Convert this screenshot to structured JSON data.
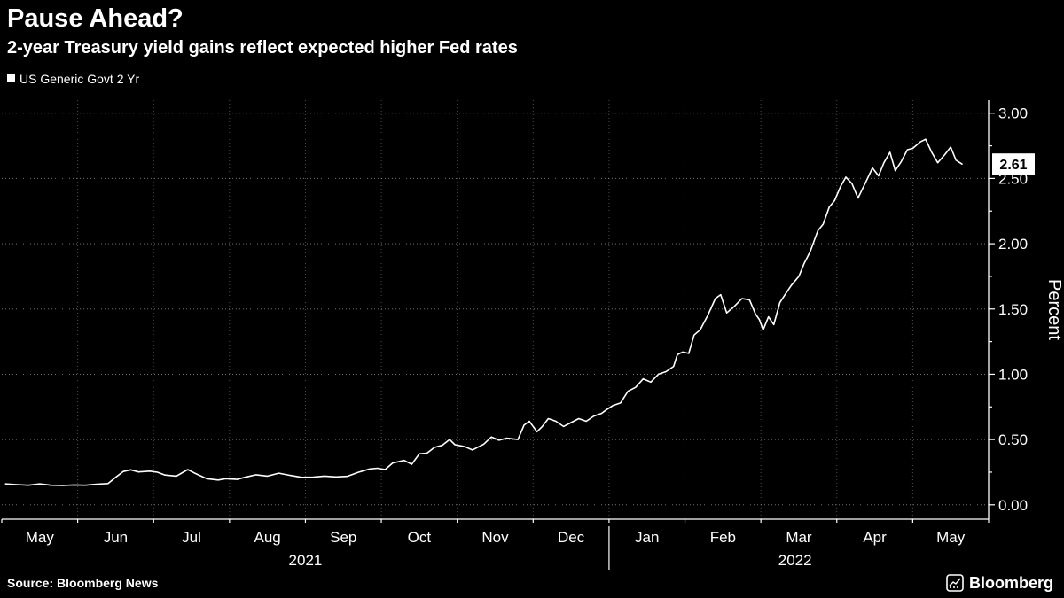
{
  "chart_data": {
    "type": "line",
    "title": "Pause Ahead?",
    "subtitle": "2-year Treasury yield gains reflect expected higher Fed rates",
    "ylabel": "Percent",
    "grid": "dotted",
    "legend_position": "top-left",
    "background_color": "#000000",
    "line_color": "#ffffff",
    "xlim": [
      0,
      13
    ],
    "ylim": [
      -0.11,
      3.1
    ],
    "yticks": [
      0,
      0.5,
      1,
      1.5,
      2,
      2.5,
      3
    ],
    "ytick_labels": [
      "0.00",
      "0.50",
      "1.00",
      "1.50",
      "2.00",
      "2.50",
      "3.00"
    ],
    "x_ticks": [
      {
        "label": "May",
        "x": 0.5
      },
      {
        "label": "Jun",
        "x": 1.5
      },
      {
        "label": "Jul",
        "x": 2.5
      },
      {
        "label": "Aug",
        "x": 3.5
      },
      {
        "label": "Sep",
        "x": 4.5
      },
      {
        "label": "Oct",
        "x": 5.5
      },
      {
        "label": "Nov",
        "x": 6.5
      },
      {
        "label": "Dec",
        "x": 7.5
      },
      {
        "label": "Jan",
        "x": 8.5
      },
      {
        "label": "Feb",
        "x": 9.5
      },
      {
        "label": "Mar",
        "x": 10.5
      },
      {
        "label": "Apr",
        "x": 11.5
      },
      {
        "label": "May",
        "x": 12.5
      }
    ],
    "year_labels": [
      {
        "label": "2021",
        "x": 4.0
      },
      {
        "label": "2022",
        "x": 10.45
      }
    ],
    "year_divider_x": 8,
    "last_value_label": "2.61",
    "series": [
      {
        "name": "US Generic Govt 2 Yr",
        "color": "#ffffff",
        "points": [
          [
            0.05,
            0.16
          ],
          [
            0.2,
            0.155
          ],
          [
            0.35,
            0.15
          ],
          [
            0.5,
            0.16
          ],
          [
            0.65,
            0.15
          ],
          [
            0.8,
            0.148
          ],
          [
            0.95,
            0.152
          ],
          [
            1.1,
            0.15
          ],
          [
            1.25,
            0.158
          ],
          [
            1.4,
            0.163
          ],
          [
            1.5,
            0.21
          ],
          [
            1.6,
            0.255
          ],
          [
            1.7,
            0.268
          ],
          [
            1.8,
            0.252
          ],
          [
            1.95,
            0.258
          ],
          [
            2.05,
            0.25
          ],
          [
            2.15,
            0.228
          ],
          [
            2.3,
            0.22
          ],
          [
            2.45,
            0.27
          ],
          [
            2.55,
            0.24
          ],
          [
            2.7,
            0.2
          ],
          [
            2.85,
            0.19
          ],
          [
            2.95,
            0.2
          ],
          [
            3.1,
            0.195
          ],
          [
            3.2,
            0.21
          ],
          [
            3.35,
            0.23
          ],
          [
            3.5,
            0.22
          ],
          [
            3.65,
            0.242
          ],
          [
            3.8,
            0.225
          ],
          [
            3.95,
            0.21
          ],
          [
            4.1,
            0.212
          ],
          [
            4.25,
            0.22
          ],
          [
            4.4,
            0.214
          ],
          [
            4.55,
            0.218
          ],
          [
            4.7,
            0.25
          ],
          [
            4.85,
            0.275
          ],
          [
            4.95,
            0.28
          ],
          [
            5.05,
            0.27
          ],
          [
            5.15,
            0.32
          ],
          [
            5.3,
            0.34
          ],
          [
            5.4,
            0.31
          ],
          [
            5.5,
            0.39
          ],
          [
            5.6,
            0.395
          ],
          [
            5.7,
            0.44
          ],
          [
            5.8,
            0.455
          ],
          [
            5.9,
            0.5
          ],
          [
            5.97,
            0.46
          ],
          [
            6.1,
            0.445
          ],
          [
            6.2,
            0.42
          ],
          [
            6.35,
            0.465
          ],
          [
            6.45,
            0.52
          ],
          [
            6.55,
            0.495
          ],
          [
            6.65,
            0.51
          ],
          [
            6.8,
            0.5
          ],
          [
            6.88,
            0.61
          ],
          [
            6.95,
            0.64
          ],
          [
            7.05,
            0.56
          ],
          [
            7.12,
            0.6
          ],
          [
            7.2,
            0.66
          ],
          [
            7.3,
            0.64
          ],
          [
            7.4,
            0.6
          ],
          [
            7.5,
            0.63
          ],
          [
            7.6,
            0.66
          ],
          [
            7.7,
            0.64
          ],
          [
            7.8,
            0.68
          ],
          [
            7.9,
            0.7
          ],
          [
            7.97,
            0.73
          ],
          [
            8.05,
            0.76
          ],
          [
            8.15,
            0.78
          ],
          [
            8.25,
            0.87
          ],
          [
            8.35,
            0.9
          ],
          [
            8.45,
            0.965
          ],
          [
            8.55,
            0.94
          ],
          [
            8.65,
            1.0
          ],
          [
            8.75,
            1.02
          ],
          [
            8.85,
            1.06
          ],
          [
            8.9,
            1.15
          ],
          [
            8.97,
            1.17
          ],
          [
            9.05,
            1.16
          ],
          [
            9.12,
            1.3
          ],
          [
            9.2,
            1.34
          ],
          [
            9.3,
            1.45
          ],
          [
            9.4,
            1.58
          ],
          [
            9.47,
            1.61
          ],
          [
            9.55,
            1.47
          ],
          [
            9.65,
            1.52
          ],
          [
            9.75,
            1.58
          ],
          [
            9.85,
            1.57
          ],
          [
            9.93,
            1.46
          ],
          [
            9.98,
            1.42
          ],
          [
            10.03,
            1.34
          ],
          [
            10.1,
            1.44
          ],
          [
            10.17,
            1.38
          ],
          [
            10.25,
            1.55
          ],
          [
            10.33,
            1.62
          ],
          [
            10.4,
            1.68
          ],
          [
            10.5,
            1.75
          ],
          [
            10.57,
            1.85
          ],
          [
            10.65,
            1.94
          ],
          [
            10.75,
            2.1
          ],
          [
            10.82,
            2.15
          ],
          [
            10.9,
            2.28
          ],
          [
            10.97,
            2.33
          ],
          [
            11.05,
            2.44
          ],
          [
            11.12,
            2.51
          ],
          [
            11.2,
            2.46
          ],
          [
            11.28,
            2.35
          ],
          [
            11.38,
            2.47
          ],
          [
            11.47,
            2.58
          ],
          [
            11.55,
            2.52
          ],
          [
            11.62,
            2.62
          ],
          [
            11.7,
            2.7
          ],
          [
            11.77,
            2.56
          ],
          [
            11.85,
            2.63
          ],
          [
            11.93,
            2.72
          ],
          [
            12.0,
            2.73
          ],
          [
            12.1,
            2.78
          ],
          [
            12.17,
            2.8
          ],
          [
            12.25,
            2.7
          ],
          [
            12.33,
            2.62
          ],
          [
            12.42,
            2.68
          ],
          [
            12.5,
            2.74
          ],
          [
            12.57,
            2.64
          ],
          [
            12.65,
            2.61
          ]
        ]
      }
    ]
  },
  "footer": {
    "source": "Source: Bloomberg News",
    "brand": "Bloomberg"
  }
}
